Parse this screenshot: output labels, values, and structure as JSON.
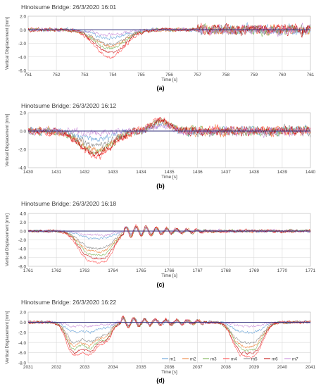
{
  "colors": {
    "m1": "#5b9bd5",
    "m2": "#ed7d31",
    "m3": "#70ad47",
    "m4": "#ff3b3b",
    "m5": "#7f7f7f",
    "m6": "#c00000",
    "m7": "#c586d8",
    "zero_line": "#2f2f7a",
    "grid": "#d9d9d9",
    "text": "#404040"
  },
  "chart_data": [
    {
      "type": "line",
      "title": "Hinotsume Bridge: 26/3/2020 16:01",
      "caption": "(a)",
      "xlabel": "Time [s]",
      "ylabel": "Vertical Displacement [mm]",
      "xlim": [
        751,
        761
      ],
      "ylim": [
        -6.0,
        2.0
      ],
      "xticks": [
        "751",
        "752",
        "753",
        "754",
        "755",
        "756",
        "757",
        "758",
        "759",
        "760",
        "761"
      ],
      "yticks": [
        "2.0",
        "0.0",
        "-2.0",
        "-4.0",
        "-6.0"
      ],
      "grid": true,
      "legend": "none",
      "events": [
        {
          "t": 753.9,
          "w": 0.75,
          "d": 4.0
        }
      ],
      "vibration": {
        "pre": 0.45,
        "post": 1.3,
        "post_start": 757.0
      },
      "series": [
        {
          "name": "m1",
          "scale": 0.3
        },
        {
          "name": "m2",
          "scale": 0.62
        },
        {
          "name": "m3",
          "scale": 0.7
        },
        {
          "name": "m4",
          "scale": 1.0
        },
        {
          "name": "m5",
          "scale": 0.55
        },
        {
          "name": "m6",
          "scale": 0.85
        },
        {
          "name": "m7",
          "scale": 0.18
        }
      ]
    },
    {
      "type": "line",
      "title": "Hinotsume Bridge: 26/3/2020 16:12",
      "caption": "(b)",
      "xlabel": "Time [s]",
      "ylabel": "Vertical Displacement [mm]",
      "xlim": [
        1430,
        1440
      ],
      "ylim": [
        -4.0,
        2.0
      ],
      "xticks": [
        "1430",
        "1431",
        "1432",
        "1433",
        "1434",
        "1435",
        "1436",
        "1437",
        "1438",
        "1439",
        "1440"
      ],
      "yticks": [
        "2.0",
        "0.0",
        "-2.0",
        "-4.0"
      ],
      "grid": true,
      "legend": "none",
      "events": [
        {
          "t": 1432.4,
          "w": 0.8,
          "d": 2.8
        }
      ],
      "bump": {
        "t": 1434.7,
        "w": 0.45,
        "h": 1.2
      },
      "vibration": {
        "pre": 0.7,
        "post": 0.9,
        "post_start": 1435.5
      },
      "series": [
        {
          "name": "m1",
          "scale": 0.35
        },
        {
          "name": "m2",
          "scale": 0.75
        },
        {
          "name": "m3",
          "scale": 0.8
        },
        {
          "name": "m4",
          "scale": 1.0
        },
        {
          "name": "m5",
          "scale": 0.6
        },
        {
          "name": "m6",
          "scale": 0.9
        },
        {
          "name": "m7",
          "scale": 0.1
        }
      ]
    },
    {
      "type": "line",
      "title": "Hinotsume Bridge: 26/3/2020 16:18",
      "caption": "(c)",
      "xlabel": "Time [s]",
      "ylabel": "Vertical Displacement [mm]",
      "xlim": [
        1761,
        1771
      ],
      "ylim": [
        -8.0,
        4.0
      ],
      "xticks": [
        "1761",
        "1762",
        "1763",
        "1764",
        "1765",
        "1766",
        "1767",
        "1768",
        "1769",
        "1770",
        "1771"
      ],
      "yticks": [
        "4.0",
        "2.0",
        "0.0",
        "-2.0",
        "-4.0",
        "-6.0",
        "-8.0"
      ],
      "grid": true,
      "legend": "none",
      "events": [
        {
          "t": 1763.1,
          "w": 0.5,
          "d": 5.8
        },
        {
          "t": 1763.75,
          "w": 0.45,
          "d": 5.6
        }
      ],
      "oscillation": {
        "start": 1764.4,
        "end": 1767.2,
        "amp": 1.5,
        "period": 0.36
      },
      "vibration": {
        "pre": 0.5,
        "post": 0.6,
        "post_start": 1767.2
      },
      "series": [
        {
          "name": "m1",
          "scale": 0.22
        },
        {
          "name": "m2",
          "scale": 0.65
        },
        {
          "name": "m3",
          "scale": 0.75
        },
        {
          "name": "m4",
          "scale": 1.0
        },
        {
          "name": "m5",
          "scale": 0.55
        },
        {
          "name": "m6",
          "scale": 0.88
        },
        {
          "name": "m7",
          "scale": 0.12
        }
      ]
    },
    {
      "type": "line",
      "title": "Hinotsume Bridge: 26/3/2020 16:22",
      "caption": "(d)",
      "xlabel": "Time [s]",
      "ylabel": "Vertical Displacement [mm]",
      "xlim": [
        2031,
        2041
      ],
      "ylim": [
        -8.0,
        2.0
      ],
      "xticks": [
        "2031",
        "2032",
        "2033",
        "2034",
        "2035",
        "2036",
        "2037",
        "2038",
        "2039",
        "2040",
        "2041"
      ],
      "yticks": [
        "2.0",
        "0.0",
        "-2.0",
        "-4.0",
        "-6.0",
        "-8.0"
      ],
      "grid": true,
      "legend": "bottom-right",
      "events": [
        {
          "t": 2032.6,
          "w": 0.35,
          "d": 6.2
        },
        {
          "t": 2033.2,
          "w": 0.35,
          "d": 6.0
        },
        {
          "t": 2033.75,
          "w": 0.3,
          "d": 3.6
        },
        {
          "t": 2038.5,
          "w": 0.4,
          "d": 5.4
        },
        {
          "t": 2039.05,
          "w": 0.4,
          "d": 5.6
        }
      ],
      "oscillation": {
        "start": 2034.3,
        "end": 2037.2,
        "amp": 1.1,
        "period": 0.38
      },
      "vibration": {
        "pre": 0.5,
        "post": 0.5,
        "post_start": 2039.8
      },
      "series": [
        {
          "name": "m1",
          "scale": 0.3
        },
        {
          "name": "m2",
          "scale": 0.7
        },
        {
          "name": "m3",
          "scale": 0.8
        },
        {
          "name": "m4",
          "scale": 1.0
        },
        {
          "name": "m5",
          "scale": 0.6
        },
        {
          "name": "m6",
          "scale": 0.9
        },
        {
          "name": "m7",
          "scale": 0.12
        }
      ]
    }
  ]
}
